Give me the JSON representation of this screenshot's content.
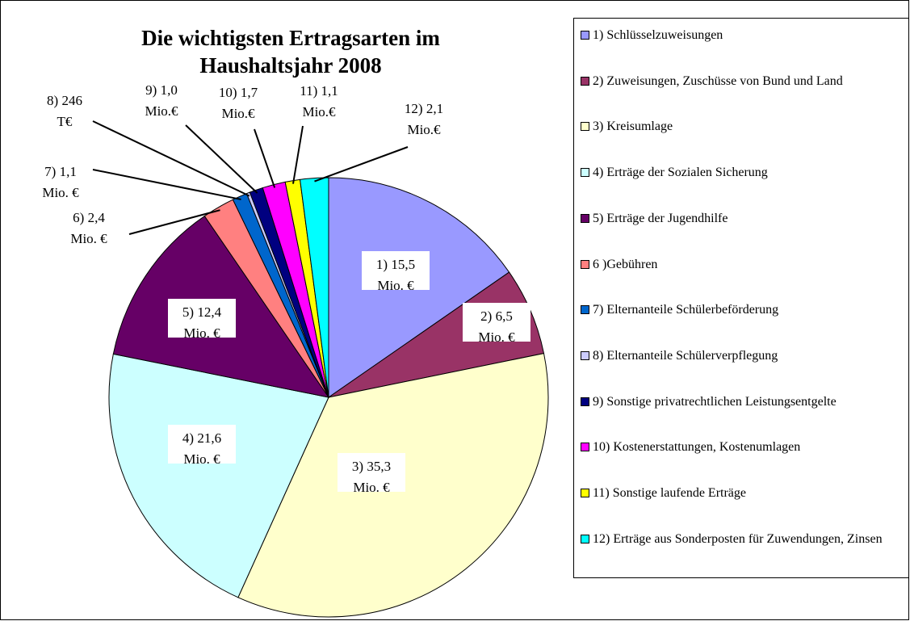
{
  "chart_data": {
    "type": "pie",
    "title": "Die wichtigsten Ertragsarten im Haushaltsjahr 2008",
    "categories": [
      "1) Schlüsselzuweisungen",
      "2) Zuweisungen, Zuschüsse von Bund und Land",
      "3) Kreisumlage",
      "4) Erträge der Sozialen Sicherung",
      "5) Erträge der Jugendhilfe",
      "6 )Gebühren",
      "7) Elternanteile Schülerbeförderung",
      "8) Elternanteile Schülerverpflegung",
      "9) Sonstige privatrechtlichen Leistungsentgelte",
      "10) Kostenerstattungen, Kostenumlagen",
      "11) Sonstige laufende Erträge",
      "12) Erträge aus Sonderposten für Zuwendungen, Zinsen"
    ],
    "values": [
      15.5,
      6.5,
      35.3,
      21.6,
      12.4,
      2.4,
      1.1,
      0.246,
      1.0,
      1.7,
      1.1,
      2.1
    ],
    "value_labels": [
      [
        "1) 15,5",
        "Mio. €"
      ],
      [
        "2) 6,5",
        "Mio. €"
      ],
      [
        "3) 35,3",
        "Mio. €"
      ],
      [
        "4) 21,6",
        "Mio. €"
      ],
      [
        "5) 12,4",
        "Mio. €"
      ],
      [
        "6) 2,4",
        "Mio. €"
      ],
      [
        "7) 1,1",
        "Mio. €"
      ],
      [
        "8) 246",
        "T€"
      ],
      [
        "9) 1,0",
        "Mio.€"
      ],
      [
        "10) 1,7",
        "Mio.€"
      ],
      [
        "11) 1,1",
        "Mio.€"
      ],
      [
        "12) 2,1",
        "Mio.€"
      ]
    ],
    "colors": [
      "#9999ff",
      "#993366",
      "#ffffcc",
      "#ccffff",
      "#660066",
      "#ff8080",
      "#0066cc",
      "#ccccff",
      "#000080",
      "#ff00ff",
      "#ffff00",
      "#00ffff"
    ]
  }
}
